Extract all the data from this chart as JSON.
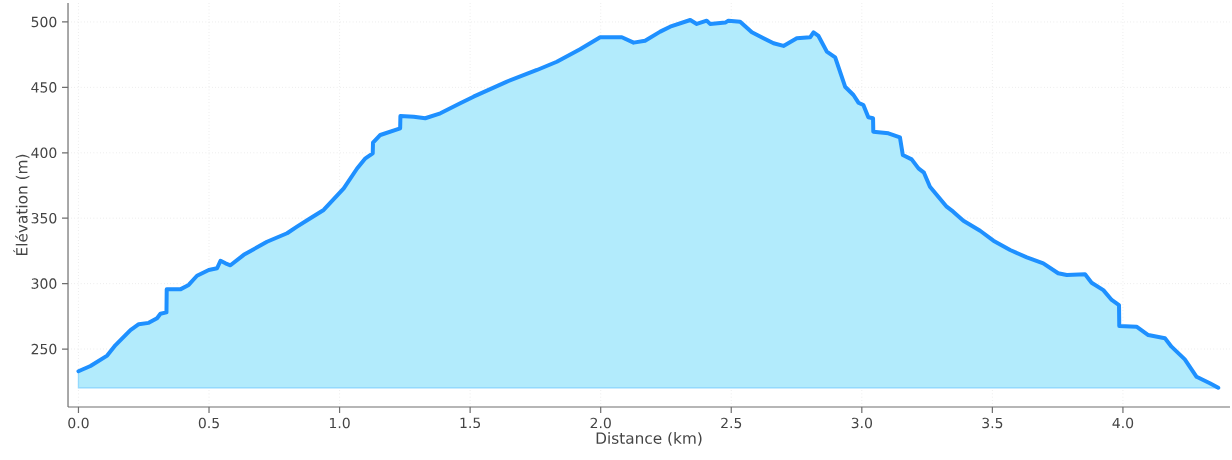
{
  "chart_data": {
    "type": "area",
    "xlabel": "Distance (km)",
    "ylabel": "Élévation (m)",
    "x": [
      0.0,
      0.046,
      0.11,
      0.142,
      0.199,
      0.231,
      0.269,
      0.301,
      0.314,
      0.337,
      0.338,
      0.39,
      0.422,
      0.454,
      0.499,
      0.531,
      0.544,
      0.563,
      0.582,
      0.633,
      0.722,
      0.799,
      0.837,
      0.888,
      0.939,
      0.965,
      1.016,
      1.067,
      1.099,
      1.127,
      1.128,
      1.156,
      1.232,
      1.233,
      1.284,
      1.328,
      1.386,
      1.462,
      1.513,
      1.641,
      1.756,
      1.832,
      1.921,
      1.998,
      2.081,
      2.126,
      2.17,
      2.228,
      2.266,
      2.343,
      2.368,
      2.406,
      2.419,
      2.477,
      2.489,
      2.534,
      2.579,
      2.662,
      2.7,
      2.751,
      2.802,
      2.815,
      2.834,
      2.866,
      2.898,
      2.936,
      2.968,
      2.987,
      3.006,
      3.025,
      3.043,
      3.044,
      3.102,
      3.146,
      3.157,
      3.191,
      3.217,
      3.238,
      3.261,
      3.325,
      3.35,
      3.389,
      3.453,
      3.504,
      3.568,
      3.632,
      3.695,
      3.752,
      3.785,
      3.855,
      3.88,
      3.925,
      3.957,
      3.985,
      3.986,
      4.052,
      4.097,
      4.161,
      4.186,
      4.237,
      4.282,
      4.333,
      4.365
    ],
    "series": [
      {
        "color": "#1e90ff",
        "values": [
          233,
          237,
          245,
          253,
          264.5,
          269,
          270,
          273.5,
          277,
          278,
          295.6,
          295.6,
          299,
          306,
          310.4,
          311.7,
          317.5,
          315.5,
          314,
          322,
          332,
          338.5,
          343.5,
          350,
          356.3,
          361.9,
          372.8,
          388,
          395.8,
          399.6,
          407.7,
          413.6,
          418.7,
          428.1,
          427.6,
          426.4,
          430.2,
          437.8,
          442.9,
          454.4,
          463.3,
          469.6,
          479.1,
          488.3,
          488.3,
          484.2,
          485.7,
          492.6,
          496.4,
          501.5,
          498.5,
          501,
          498.5,
          499.5,
          501,
          500.2,
          492.1,
          483.7,
          481.7,
          487.5,
          488.3,
          492.1,
          489.3,
          477.3,
          473,
          450.5,
          444.2,
          438.3,
          436.5,
          427.1,
          426.4,
          416.1,
          414.9,
          411.8,
          398.3,
          395,
          388.1,
          384.8,
          374.1,
          358.8,
          355,
          348.1,
          340.4,
          332.8,
          325.7,
          320.1,
          315.5,
          307.9,
          306.6,
          307.1,
          300.7,
          295,
          287.5,
          283.6,
          267.6,
          267.1,
          260.7,
          258.2,
          251.8,
          242.1,
          228.8,
          223.8,
          220.4
        ]
      }
    ],
    "xlim": [
      -0.04,
      4.41
    ],
    "ylim": [
      205.7,
      514.5
    ],
    "xticks": [
      {
        "value": 0,
        "label": "0.0"
      },
      {
        "value": 0.5,
        "label": "0.5"
      },
      {
        "value": 1,
        "label": "1.0"
      },
      {
        "value": 1.5,
        "label": "1.5"
      },
      {
        "value": 2,
        "label": "2.0"
      },
      {
        "value": 2.5,
        "label": "2.5"
      },
      {
        "value": 3,
        "label": "3.0"
      },
      {
        "value": 3.5,
        "label": "3.5"
      },
      {
        "value": 4,
        "label": "4.0"
      }
    ],
    "yticks": [
      250,
      300,
      350,
      400,
      450,
      500
    ],
    "grid": true,
    "line_style": "solid"
  }
}
